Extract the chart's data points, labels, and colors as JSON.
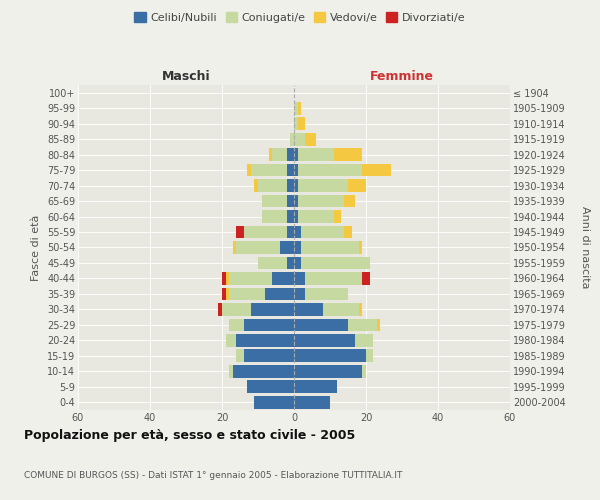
{
  "age_groups": [
    "0-4",
    "5-9",
    "10-14",
    "15-19",
    "20-24",
    "25-29",
    "30-34",
    "35-39",
    "40-44",
    "45-49",
    "50-54",
    "55-59",
    "60-64",
    "65-69",
    "70-74",
    "75-79",
    "80-84",
    "85-89",
    "90-94",
    "95-99",
    "100+"
  ],
  "birth_years": [
    "2000-2004",
    "1995-1999",
    "1990-1994",
    "1985-1989",
    "1980-1984",
    "1975-1979",
    "1970-1974",
    "1965-1969",
    "1960-1964",
    "1955-1959",
    "1950-1954",
    "1945-1949",
    "1940-1944",
    "1935-1939",
    "1930-1934",
    "1925-1929",
    "1920-1924",
    "1915-1919",
    "1910-1914",
    "1905-1909",
    "≤ 1904"
  ],
  "colors": {
    "celibe": "#3a6ea5",
    "coniugato": "#c5d9a0",
    "vedovo": "#f5c842",
    "divorziato": "#cc2222"
  },
  "maschi": {
    "celibe": [
      11,
      13,
      17,
      14,
      16,
      14,
      12,
      8,
      6,
      2,
      4,
      2,
      2,
      2,
      2,
      2,
      2,
      0,
      0,
      0,
      0
    ],
    "coniugato": [
      0,
      0,
      1,
      2,
      3,
      4,
      8,
      10,
      12,
      8,
      12,
      12,
      7,
      7,
      8,
      10,
      4,
      1,
      0,
      0,
      0
    ],
    "vedovo": [
      0,
      0,
      0,
      0,
      0,
      0,
      0,
      1,
      1,
      0,
      1,
      0,
      0,
      0,
      1,
      1,
      1,
      0,
      0,
      0,
      0
    ],
    "divorziato": [
      0,
      0,
      0,
      0,
      0,
      0,
      1,
      1,
      1,
      0,
      0,
      2,
      0,
      0,
      0,
      0,
      0,
      0,
      0,
      0,
      0
    ]
  },
  "femmine": {
    "celibe": [
      10,
      12,
      19,
      20,
      17,
      15,
      8,
      3,
      3,
      2,
      2,
      2,
      1,
      1,
      1,
      1,
      1,
      0,
      0,
      0,
      0
    ],
    "coniugato": [
      0,
      0,
      1,
      2,
      5,
      8,
      10,
      12,
      16,
      19,
      16,
      12,
      10,
      13,
      14,
      18,
      10,
      3,
      1,
      1,
      0
    ],
    "vedovo": [
      0,
      0,
      0,
      0,
      0,
      1,
      1,
      0,
      0,
      0,
      1,
      2,
      2,
      3,
      5,
      8,
      8,
      3,
      2,
      1,
      0
    ],
    "divorziato": [
      0,
      0,
      0,
      0,
      0,
      0,
      0,
      0,
      2,
      0,
      0,
      0,
      0,
      0,
      0,
      0,
      0,
      0,
      0,
      0,
      0
    ]
  },
  "xlim": 60,
  "title": "Popolazione per età, sesso e stato civile - 2005",
  "subtitle": "COMUNE DI BURGOS (SS) - Dati ISTAT 1° gennaio 2005 - Elaborazione TUTTITALIA.IT",
  "ylabel_left": "Fasce di età",
  "ylabel_right": "Anni di nascita",
  "xlabel_left": "Maschi",
  "xlabel_right": "Femmine",
  "legend_labels": [
    "Celibi/Nubili",
    "Coniugati/e",
    "Vedovi/e",
    "Divorziati/e"
  ],
  "bg_color": "#f0f0eb",
  "plot_bg": "#e8e8e0",
  "grid_color": "#ffffff",
  "legend_marker_colors": [
    "#3a6ea5",
    "#c5d9a0",
    "#f5c842",
    "#cc2222"
  ]
}
